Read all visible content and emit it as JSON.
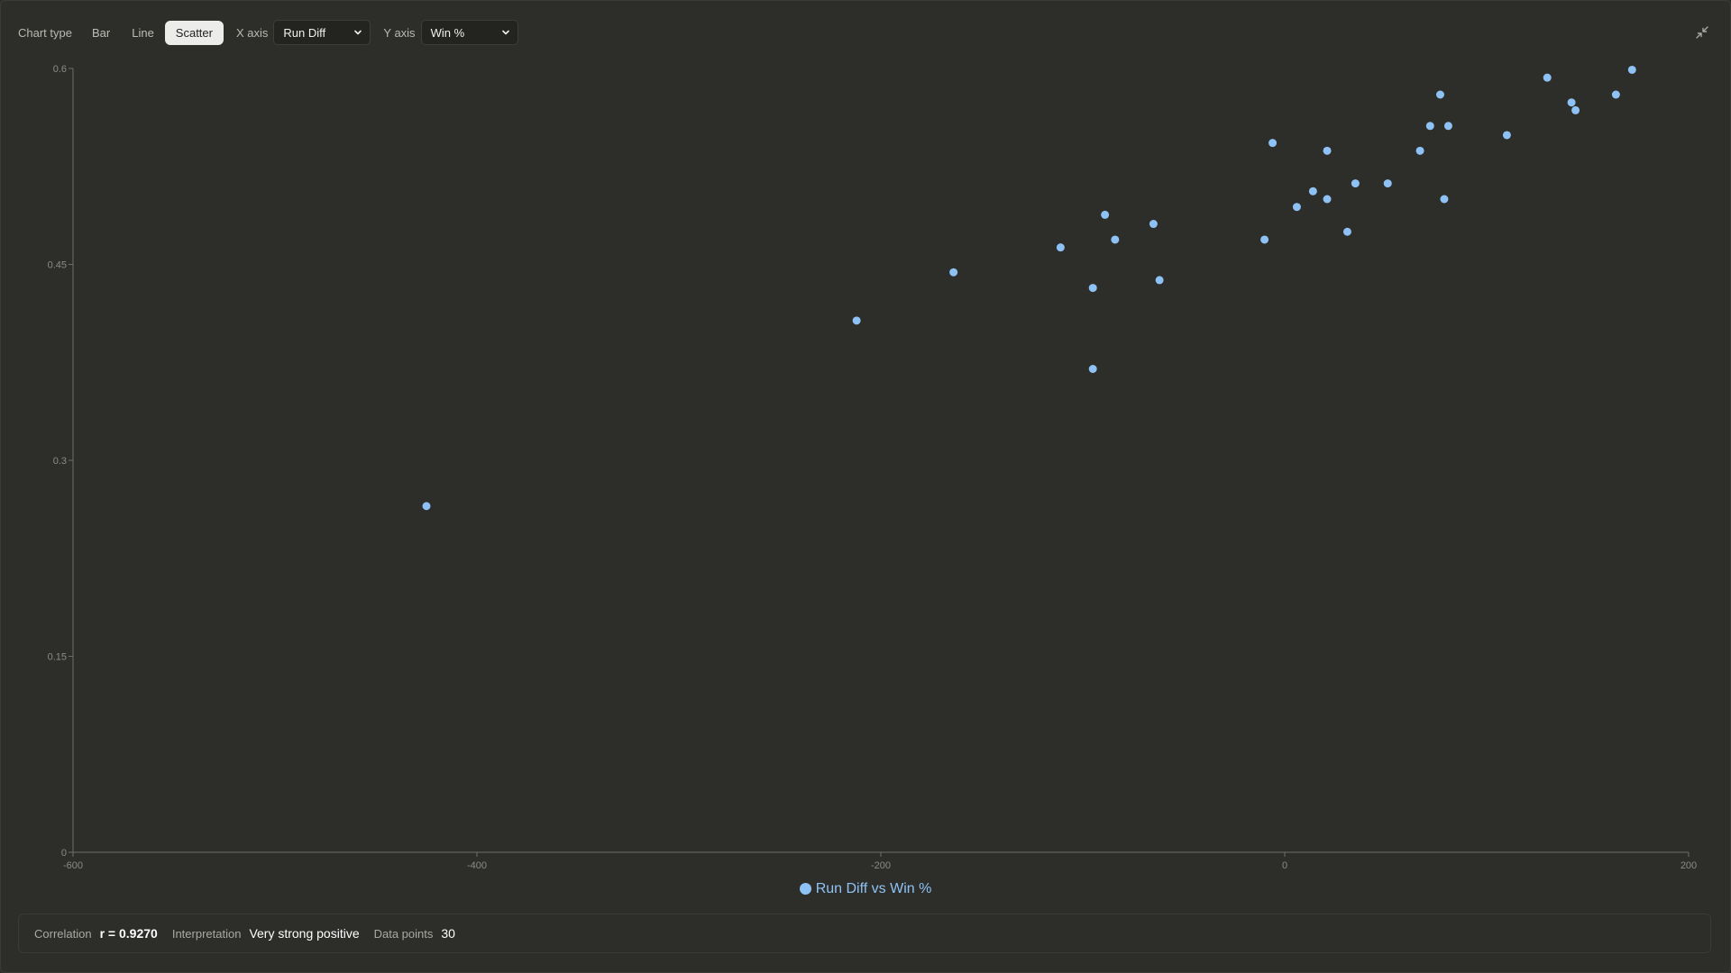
{
  "toolbar": {
    "chart_type_label": "Chart type",
    "types": [
      "Bar",
      "Line",
      "Scatter"
    ],
    "active_type": "Scatter",
    "x_axis_label": "X axis",
    "x_axis_value": "Run Diff",
    "y_axis_label": "Y axis",
    "y_axis_value": "Win %",
    "collapse_icon": "collapse-icon"
  },
  "colors": {
    "background": "#2d2d2a",
    "point": "#8ec2f5",
    "axis": "#6e6e69"
  },
  "chart_data": {
    "type": "scatter",
    "title": "",
    "xlabel": "",
    "ylabel": "",
    "xlim": [
      -600,
      200
    ],
    "ylim": [
      0,
      0.6
    ],
    "x_ticks": [
      "-600",
      "-400",
      "-200",
      "0",
      "200"
    ],
    "y_ticks": [
      "0",
      "0.15",
      "0.3",
      "0.45",
      "0.6"
    ],
    "legend_position": "bottom-center",
    "grid": false,
    "series": [
      {
        "name": "Run Diff vs Win %",
        "points": [
          [
            -425,
            0.265
          ],
          [
            -212,
            0.407
          ],
          [
            -164,
            0.444
          ],
          [
            -111,
            0.463
          ],
          [
            -95,
            0.432
          ],
          [
            -95,
            0.37
          ],
          [
            -89,
            0.488
          ],
          [
            -84,
            0.469
          ],
          [
            -65,
            0.481
          ],
          [
            -62,
            0.438
          ],
          [
            -10,
            0.469
          ],
          [
            -6,
            0.543
          ],
          [
            6,
            0.494
          ],
          [
            14,
            0.506
          ],
          [
            21,
            0.5
          ],
          [
            21,
            0.537
          ],
          [
            31,
            0.475
          ],
          [
            35,
            0.512
          ],
          [
            51,
            0.512
          ],
          [
            67,
            0.537
          ],
          [
            72,
            0.556
          ],
          [
            77,
            0.58
          ],
          [
            79,
            0.5
          ],
          [
            81,
            0.556
          ],
          [
            110,
            0.549
          ],
          [
            130,
            0.593
          ],
          [
            142,
            0.574
          ],
          [
            144,
            0.568
          ],
          [
            164,
            0.58
          ],
          [
            172,
            0.599
          ]
        ]
      }
    ]
  },
  "legend": {
    "label": "Run Diff vs Win %"
  },
  "stats": {
    "correlation_label": "Correlation",
    "correlation_value": "r = 0.9270",
    "interpretation_label": "Interpretation",
    "interpretation_value": "Very strong positive",
    "points_label": "Data points",
    "points_value": "30"
  }
}
